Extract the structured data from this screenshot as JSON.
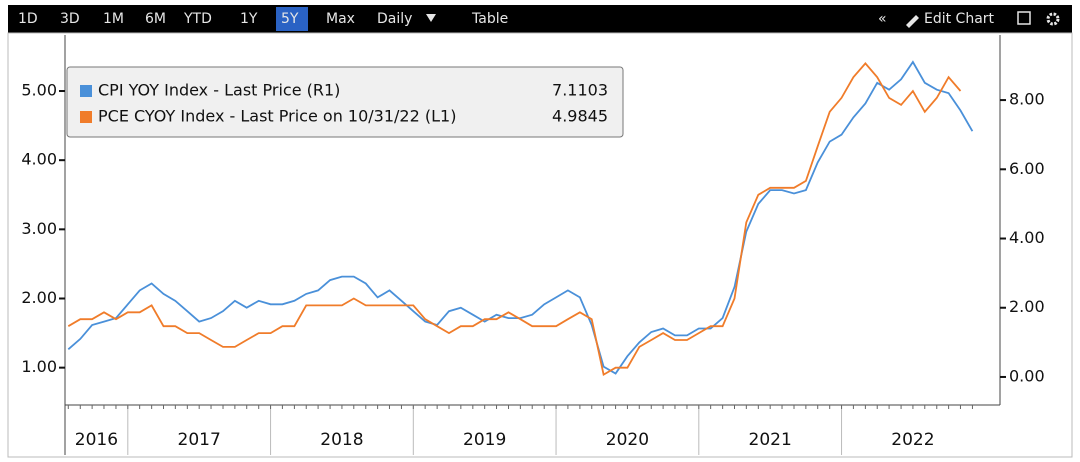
{
  "toolbar": {
    "ranges": [
      "1D",
      "3D",
      "1M",
      "6M",
      "YTD",
      "1Y",
      "5Y",
      "Max"
    ],
    "active": 6,
    "frequency": "Daily",
    "table": "Table",
    "edit": "Edit Chart"
  },
  "chart_data": {
    "type": "line",
    "x": [
      2016.583,
      2016.667,
      2016.75,
      2016.833,
      2016.917,
      2017.0,
      2017.083,
      2017.167,
      2017.25,
      2017.333,
      2017.417,
      2017.5,
      2017.583,
      2017.667,
      2017.75,
      2017.833,
      2017.917,
      2018.0,
      2018.083,
      2018.167,
      2018.25,
      2018.333,
      2018.417,
      2018.5,
      2018.583,
      2018.667,
      2018.75,
      2018.833,
      2018.917,
      2019.0,
      2019.083,
      2019.167,
      2019.25,
      2019.333,
      2019.417,
      2019.5,
      2019.583,
      2019.667,
      2019.75,
      2019.833,
      2019.917,
      2020.0,
      2020.083,
      2020.167,
      2020.25,
      2020.333,
      2020.417,
      2020.5,
      2020.583,
      2020.667,
      2020.75,
      2020.833,
      2020.917,
      2021.0,
      2021.083,
      2021.167,
      2021.25,
      2021.333,
      2021.417,
      2021.5,
      2021.583,
      2021.667,
      2021.75,
      2021.833,
      2021.917,
      2022.0,
      2022.083,
      2022.167,
      2022.25,
      2022.333,
      2022.417,
      2022.5,
      2022.583,
      2022.667,
      2022.75,
      2022.833,
      2022.917
    ],
    "xlim": [
      2016.56,
      2023.11
    ],
    "xticks": [
      {
        "value": 2016.78,
        "label": "2016"
      },
      {
        "value": 2017.5,
        "label": "2017"
      },
      {
        "value": 2018.5,
        "label": "2018"
      },
      {
        "value": 2019.5,
        "label": "2019"
      },
      {
        "value": 2020.5,
        "label": "2020"
      },
      {
        "value": 2021.5,
        "label": "2021"
      },
      {
        "value": 2022.5,
        "label": "2022"
      }
    ],
    "x_separators": [
      2017,
      2018,
      2019,
      2020,
      2021,
      2022
    ],
    "ylim": [
      0.46,
      5.81
    ],
    "yticks": [
      {
        "value": 1,
        "label": "1.00"
      },
      {
        "value": 2,
        "label": "2.00"
      },
      {
        "value": 3,
        "label": "3.00"
      },
      {
        "value": 4,
        "label": "4.00"
      },
      {
        "value": 5,
        "label": "5.00"
      }
    ],
    "y2lim": [
      -0.81,
      9.88
    ],
    "y2ticks": [
      {
        "value": 0,
        "label": "0.00"
      },
      {
        "value": 2,
        "label": "2.00"
      },
      {
        "value": 4,
        "label": "4.00"
      },
      {
        "value": 6,
        "label": "6.00"
      },
      {
        "value": 8,
        "label": "8.00"
      }
    ],
    "series": [
      {
        "name": "CPI YOY Index - Last Price (R1)",
        "last_value": 7.1103,
        "color": "#4a90d9",
        "axis": "y2",
        "values": [
          0.8,
          1.1,
          1.5,
          1.6,
          1.7,
          2.1,
          2.5,
          2.7,
          2.4,
          2.2,
          1.9,
          1.6,
          1.7,
          1.9,
          2.2,
          2.0,
          2.2,
          2.1,
          2.1,
          2.2,
          2.4,
          2.5,
          2.8,
          2.9,
          2.9,
          2.7,
          2.3,
          2.5,
          2.2,
          1.9,
          1.6,
          1.5,
          1.9,
          2.0,
          1.8,
          1.6,
          1.8,
          1.7,
          1.7,
          1.8,
          2.1,
          2.3,
          2.5,
          2.3,
          1.5,
          0.3,
          0.1,
          0.6,
          1.0,
          1.3,
          1.4,
          1.2,
          1.2,
          1.4,
          1.4,
          1.7,
          2.6,
          4.2,
          5.0,
          5.4,
          5.4,
          5.3,
          5.4,
          6.2,
          6.8,
          7.0,
          7.5,
          7.9,
          8.5,
          8.3,
          8.6,
          9.1,
          8.5,
          8.3,
          8.2,
          7.7,
          7.1
        ]
      },
      {
        "name": "PCE CYOY Index - Last Price on 10/31/22 (L1)",
        "last_value": 4.9845,
        "color": "#f07c2a",
        "axis": "y",
        "values": [
          1.6,
          1.7,
          1.7,
          1.8,
          1.7,
          1.8,
          1.8,
          1.9,
          1.6,
          1.6,
          1.5,
          1.5,
          1.4,
          1.3,
          1.3,
          1.4,
          1.5,
          1.5,
          1.6,
          1.6,
          1.9,
          1.9,
          1.9,
          1.9,
          2.0,
          1.9,
          1.9,
          1.9,
          1.9,
          1.9,
          1.7,
          1.6,
          1.5,
          1.6,
          1.6,
          1.7,
          1.7,
          1.8,
          1.7,
          1.6,
          1.6,
          1.6,
          1.7,
          1.8,
          1.7,
          0.9,
          1.0,
          1.0,
          1.3,
          1.4,
          1.5,
          1.4,
          1.4,
          1.5,
          1.6,
          1.6,
          2.0,
          3.1,
          3.5,
          3.6,
          3.6,
          3.6,
          3.7,
          4.2,
          4.7,
          4.9,
          5.2,
          5.4,
          5.2,
          4.9,
          4.8,
          5.0,
          4.7,
          4.9,
          5.2,
          5.0,
          null
        ]
      }
    ],
    "grid": false
  }
}
